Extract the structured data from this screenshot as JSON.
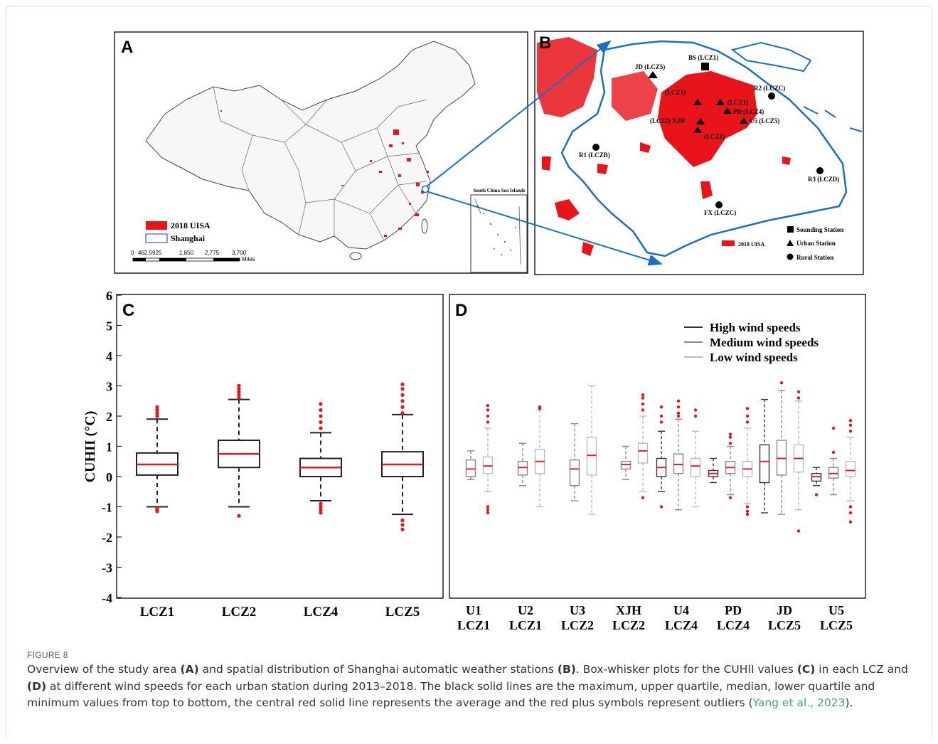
{
  "panels": {
    "a": {
      "letter": "A",
      "legend": {
        "uisa": "2018 UISA",
        "shanghai": "Shanghai"
      },
      "scale": {
        "ticks": [
          "0",
          "462.5925",
          "1,850",
          "2,775",
          "3,700"
        ],
        "unit": "Miles"
      },
      "inset_title": "South China Sea Islands",
      "colors": {
        "uisa": "#e8141a",
        "shanghai": "#3a5fd0",
        "arrow": "#1a6fc4"
      }
    },
    "b": {
      "letter": "B",
      "stations": {
        "bs": "BS (LCZ1)",
        "jd": "JD (LCZ5)",
        "r2": "R2 (LCZC)",
        "r1": "R1 (LCZB)",
        "r3": "R3 (LCZD)",
        "fx": "FX (LCZC)",
        "u2": "(LCZ1)",
        "u1": "(LCZ1)",
        "pd": "PD (LCZ4)",
        "u5": "U5 (LCZ5)",
        "xjh": "(LCZ2) XJH",
        "u4": "(LCZ1)"
      },
      "legend": {
        "uisa": "2018 UISA",
        "sounding": "Sounding Station",
        "urban": "Urban Station",
        "rural": "Rural Station"
      },
      "colors": {
        "coast": "#1a6fc4",
        "urban": "#e8141a"
      }
    }
  },
  "chart_data": [
    {
      "panel": "C",
      "type": "box",
      "ylabel": "CUHII (°C)",
      "ylim": [
        -4,
        6
      ],
      "yticks": [
        "6",
        "5",
        "4",
        "3",
        "2",
        "1",
        "0",
        "-1",
        "-2",
        "-3",
        "-4"
      ],
      "categories": [
        "LCZ1",
        "LCZ2",
        "LCZ4",
        "LCZ5"
      ],
      "boxes": [
        {
          "min": -1.0,
          "q1": 0.05,
          "median": 0.4,
          "mean": 0.4,
          "q3": 0.78,
          "max": 1.9,
          "outliers": [
            2.0,
            2.1,
            2.2,
            2.3,
            -1.05,
            -1.1,
            -1.15
          ]
        },
        {
          "min": -1.0,
          "q1": 0.3,
          "median": 0.75,
          "mean": 0.75,
          "q3": 1.2,
          "max": 2.55,
          "outliers": [
            2.6,
            2.7,
            2.8,
            2.9,
            3.0,
            -1.3
          ]
        },
        {
          "min": -0.8,
          "q1": 0.0,
          "median": 0.3,
          "mean": 0.3,
          "q3": 0.6,
          "max": 1.45,
          "outliers": [
            1.6,
            1.8,
            2.0,
            2.2,
            2.4,
            -0.9,
            -1.0,
            -1.1,
            -1.2
          ]
        },
        {
          "min": -1.25,
          "q1": 0.0,
          "median": 0.4,
          "mean": 0.4,
          "q3": 0.82,
          "max": 2.05,
          "outliers": [
            2.1,
            2.3,
            2.5,
            2.7,
            2.9,
            3.05,
            -1.45,
            -1.6,
            -1.75
          ]
        }
      ]
    },
    {
      "panel": "D",
      "type": "box",
      "ylim": [
        -4,
        6
      ],
      "categories": [
        "U1 LCZ1",
        "U2 LCZ1",
        "U3 LCZ2",
        "XJH LCZ2",
        "U4 LCZ4",
        "PD LCZ4",
        "JD LCZ5",
        "U5 LCZ5"
      ],
      "category_lines": [
        [
          "U1",
          "LCZ1"
        ],
        [
          "U2",
          "LCZ1"
        ],
        [
          "U3",
          "LCZ2"
        ],
        [
          "XJH",
          "LCZ2"
        ],
        [
          "U4",
          "LCZ4"
        ],
        [
          "PD",
          "LCZ4"
        ],
        [
          "JD",
          "LCZ5"
        ],
        [
          "U5",
          "LCZ5"
        ]
      ],
      "series": [
        {
          "name": "High wind speeds",
          "color": "#333333",
          "boxes": [
            null,
            null,
            null,
            null,
            {
              "min": -0.5,
              "q1": 0.0,
              "median": 0.3,
              "mean": 0.3,
              "q3": 0.6,
              "max": 1.5,
              "outliers": [
                1.8,
                2.0,
                2.3,
                -1.0
              ]
            },
            {
              "min": -0.2,
              "q1": 0.0,
              "median": 0.1,
              "mean": 0.1,
              "q3": 0.2,
              "max": 0.6,
              "outliers": []
            },
            {
              "min": -1.2,
              "q1": -0.2,
              "median": 0.5,
              "mean": 0.5,
              "q3": 1.05,
              "max": 2.55,
              "outliers": []
            },
            {
              "min": -0.3,
              "q1": -0.15,
              "median": 0.0,
              "mean": 0.0,
              "q3": 0.1,
              "max": 0.3,
              "outliers": [
                -0.6
              ]
            }
          ]
        },
        {
          "name": "Medium wind speeds",
          "color": "#888888",
          "boxes": [
            {
              "min": -0.1,
              "q1": 0.0,
              "median": 0.25,
              "mean": 0.25,
              "q3": 0.55,
              "max": 0.85,
              "outliers": []
            },
            {
              "min": -0.3,
              "q1": 0.05,
              "median": 0.3,
              "mean": 0.3,
              "q3": 0.5,
              "max": 1.1,
              "outliers": []
            },
            {
              "min": -0.8,
              "q1": -0.3,
              "median": 0.25,
              "mean": 0.25,
              "q3": 0.55,
              "max": 1.75,
              "outliers": []
            },
            {
              "min": -0.1,
              "q1": 0.25,
              "median": 0.4,
              "mean": 0.4,
              "q3": 0.5,
              "max": 1.0,
              "outliers": []
            },
            {
              "min": -1.1,
              "q1": 0.1,
              "median": 0.4,
              "mean": 0.4,
              "q3": 0.75,
              "max": 1.9,
              "outliers": [
                2.0,
                2.1,
                2.3,
                2.5
              ]
            },
            {
              "min": -0.6,
              "q1": 0.1,
              "median": 0.3,
              "mean": 0.3,
              "q3": 0.5,
              "max": 1.0,
              "outliers": [
                1.1,
                1.3,
                1.4,
                -0.7
              ]
            },
            {
              "min": -1.25,
              "q1": 0.05,
              "median": 0.6,
              "mean": 0.6,
              "q3": 1.2,
              "max": 2.85,
              "outliers": [
                3.1
              ]
            },
            {
              "min": -0.6,
              "q1": -0.05,
              "median": 0.1,
              "mean": 0.1,
              "q3": 0.3,
              "max": 0.6,
              "outliers": [
                0.8,
                1.6
              ]
            }
          ]
        },
        {
          "name": "Low wind speeds",
          "color": "#bbbbbb",
          "boxes": [
            {
              "min": -0.5,
              "q1": 0.1,
              "median": 0.35,
              "mean": 0.35,
              "q3": 0.65,
              "max": 1.6,
              "outliers": [
                1.8,
                2.0,
                2.2,
                2.35,
                -1.0,
                -1.1,
                -1.2
              ]
            },
            {
              "min": -1.0,
              "q1": 0.1,
              "median": 0.5,
              "mean": 0.5,
              "q3": 0.9,
              "max": 2.2,
              "outliers": [
                2.25,
                2.3
              ]
            },
            {
              "min": -1.25,
              "q1": 0.05,
              "median": 0.7,
              "mean": 0.7,
              "q3": 1.3,
              "max": 3.0,
              "outliers": []
            },
            {
              "min": -0.5,
              "q1": 0.45,
              "median": 0.85,
              "mean": 0.85,
              "q3": 1.1,
              "max": 2.0,
              "outliers": [
                2.2,
                2.4,
                2.6,
                2.7,
                -0.7
              ]
            },
            {
              "min": -1.0,
              "q1": 0.0,
              "median": 0.35,
              "mean": 0.35,
              "q3": 0.6,
              "max": 1.5,
              "outliers": [
                2.0,
                2.2
              ]
            },
            {
              "min": -0.9,
              "q1": 0.0,
              "median": 0.25,
              "mean": 0.25,
              "q3": 0.5,
              "max": 1.6,
              "outliers": [
                1.8,
                2.0,
                2.25,
                -1.0,
                -1.15,
                -1.25
              ]
            },
            {
              "min": -1.1,
              "q1": 0.15,
              "median": 0.6,
              "mean": 0.6,
              "q3": 1.05,
              "max": 2.5,
              "outliers": [
                2.6,
                2.8,
                -1.8
              ]
            },
            {
              "min": -0.8,
              "q1": 0.0,
              "median": 0.2,
              "mean": 0.2,
              "q3": 0.5,
              "max": 1.3,
              "outliers": [
                1.5,
                1.7,
                1.85,
                -1.0,
                -1.2,
                -1.5
              ]
            }
          ]
        }
      ],
      "legend_placement": "top-right",
      "colors": {
        "mean": "#e8141a",
        "outlier": "#e8141a"
      }
    }
  ],
  "caption": {
    "figure_label": "FIGURE 8",
    "t1": "Overview of the study area ",
    "b1": "(A)",
    "t2": " and spatial distribution of Shanghai automatic weather stations ",
    "b2": "(B)",
    "t3": ". Box-whisker plots for the CUHII values ",
    "b3": "(C)",
    "t4": " in each LCZ and ",
    "b4": "(D)",
    "t5": " at different wind speeds for each urban station during 2013–2018. The black solid lines are the maximum, upper quartile, median, lower quartile and minimum values from top to bottom, the central red solid line represents the average and the red plus symbols represent outliers (",
    "cite": "Yang et al., 2023",
    "t6": ")."
  }
}
